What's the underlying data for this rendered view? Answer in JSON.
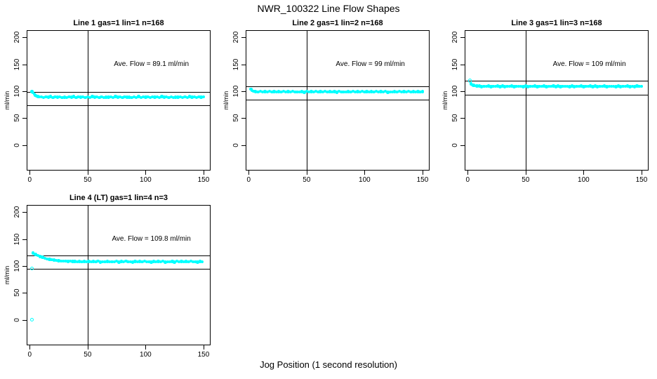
{
  "figure": {
    "title": "NWR_100322  Line Flow Shapes",
    "xlabel": "Jog Position (1 second resolution)",
    "marker_color": "#00FFFF",
    "line_color": "#000000",
    "background": "#FFFFFF"
  },
  "chart_data": [
    {
      "type": "scatter",
      "title": "Line 1 gas=1 lin=1 n=168",
      "ylabel": "ml/min",
      "annotation": "Ave. Flow =  89.1  ml/min",
      "ave_flow_ml_min": 89.1,
      "hlines": [
        99.1,
        74.1
      ],
      "vline": 50,
      "xlim": [
        -2.6,
        156.1
      ],
      "ylim": [
        -47.5,
        213.5
      ],
      "xticks": [
        0,
        50,
        100,
        150
      ],
      "yticks": [
        0,
        50,
        100,
        150,
        200
      ],
      "annotation_center": [
        105,
        150
      ],
      "outliers": [],
      "points": [
        [
          2,
          99.5
        ],
        [
          3,
          97.2
        ],
        [
          4,
          94.6
        ],
        [
          5,
          92.4
        ],
        [
          6,
          91.0
        ],
        [
          7,
          90.2
        ],
        [
          8,
          89.6
        ],
        [
          10,
          89.8
        ],
        [
          12,
          88.4
        ],
        [
          14,
          89.5
        ],
        [
          16,
          88.8
        ],
        [
          18,
          90.0
        ],
        [
          20,
          88.2
        ],
        [
          22,
          89.3
        ],
        [
          24,
          88.9
        ],
        [
          26,
          89.9
        ],
        [
          28,
          88.5
        ],
        [
          30,
          89.1
        ],
        [
          32,
          88.3
        ],
        [
          34,
          89.7
        ],
        [
          36,
          88.7
        ],
        [
          38,
          90.1
        ],
        [
          40,
          88.4
        ],
        [
          42,
          89.4
        ],
        [
          44,
          88.8
        ],
        [
          46,
          89.8
        ],
        [
          48,
          88.2
        ],
        [
          50,
          89.2
        ],
        [
          52,
          88.6
        ],
        [
          54,
          90.0
        ],
        [
          56,
          88.9
        ],
        [
          58,
          89.5
        ],
        [
          60,
          88.3
        ],
        [
          62,
          89.9
        ],
        [
          64,
          88.5
        ],
        [
          66,
          89.0
        ],
        [
          68,
          88.8
        ],
        [
          70,
          89.6
        ],
        [
          72,
          88.2
        ],
        [
          74,
          90.1
        ],
        [
          76,
          88.7
        ],
        [
          78,
          89.3
        ],
        [
          80,
          88.4
        ],
        [
          82,
          89.8
        ],
        [
          84,
          88.9
        ],
        [
          86,
          89.1
        ],
        [
          88,
          88.5
        ],
        [
          90,
          89.7
        ],
        [
          92,
          88.3
        ],
        [
          94,
          90.0
        ],
        [
          96,
          88.6
        ],
        [
          98,
          89.4
        ],
        [
          100,
          88.8
        ],
        [
          102,
          89.9
        ],
        [
          104,
          88.2
        ],
        [
          106,
          89.2
        ],
        [
          108,
          88.7
        ],
        [
          110,
          89.6
        ],
        [
          112,
          88.4
        ],
        [
          114,
          90.1
        ],
        [
          116,
          88.9
        ],
        [
          118,
          89.5
        ],
        [
          120,
          88.3
        ],
        [
          122,
          89.8
        ],
        [
          124,
          88.6
        ],
        [
          126,
          89.0
        ],
        [
          128,
          88.8
        ],
        [
          130,
          89.7
        ],
        [
          132,
          88.2
        ],
        [
          134,
          89.3
        ],
        [
          136,
          88.5
        ],
        [
          138,
          90.0
        ],
        [
          140,
          88.9
        ],
        [
          142,
          89.6
        ],
        [
          144,
          88.4
        ],
        [
          146,
          89.2
        ],
        [
          148,
          88.7
        ],
        [
          150,
          89.9
        ]
      ]
    },
    {
      "type": "scatter",
      "title": "Line 2 gas=1 lin=2 n=168",
      "ylabel": "ml/min",
      "annotation": "Ave. Flow =  99  ml/min",
      "ave_flow_ml_min": 99,
      "hlines": [
        109,
        84
      ],
      "vline": 50,
      "xlim": [
        -2.6,
        156.1
      ],
      "ylim": [
        -47.5,
        213.5
      ],
      "xticks": [
        0,
        50,
        100,
        150
      ],
      "yticks": [
        0,
        50,
        100,
        150,
        200
      ],
      "annotation_center": [
        105,
        150
      ],
      "outliers": [],
      "points": [
        [
          2,
          103.5
        ],
        [
          3,
          101.5
        ],
        [
          4,
          100.3
        ],
        [
          5,
          99.8
        ],
        [
          6,
          99.4
        ],
        [
          8,
          99.0
        ],
        [
          10,
          99.6
        ],
        [
          12,
          98.5
        ],
        [
          14,
          99.3
        ],
        [
          16,
          98.8
        ],
        [
          18,
          99.8
        ],
        [
          20,
          98.4
        ],
        [
          22,
          99.1
        ],
        [
          24,
          98.7
        ],
        [
          26,
          99.5
        ],
        [
          28,
          98.3
        ],
        [
          30,
          99.9
        ],
        [
          32,
          98.6
        ],
        [
          34,
          99.2
        ],
        [
          36,
          98.9
        ],
        [
          38,
          99.7
        ],
        [
          40,
          98.4
        ],
        [
          42,
          99.0
        ],
        [
          44,
          98.8
        ],
        [
          46,
          99.4
        ],
        [
          48,
          98.2
        ],
        [
          50,
          99.8
        ],
        [
          52,
          98.6
        ],
        [
          54,
          99.3
        ],
        [
          56,
          98.9
        ],
        [
          58,
          99.6
        ],
        [
          60,
          98.3
        ],
        [
          62,
          99.1
        ],
        [
          64,
          98.7
        ],
        [
          66,
          99.9
        ],
        [
          68,
          98.5
        ],
        [
          70,
          99.2
        ],
        [
          72,
          98.8
        ],
        [
          74,
          99.5
        ],
        [
          76,
          98.2
        ],
        [
          78,
          99.7
        ],
        [
          80,
          98.6
        ],
        [
          82,
          99.0
        ],
        [
          84,
          98.9
        ],
        [
          86,
          99.4
        ],
        [
          88,
          98.3
        ],
        [
          90,
          99.8
        ],
        [
          92,
          98.5
        ],
        [
          94,
          99.2
        ],
        [
          96,
          98.7
        ],
        [
          98,
          99.6
        ],
        [
          100,
          98.4
        ],
        [
          102,
          99.1
        ],
        [
          104,
          98.8
        ],
        [
          106,
          99.5
        ],
        [
          108,
          98.3
        ],
        [
          110,
          99.9
        ],
        [
          112,
          98.6
        ],
        [
          114,
          99.3
        ],
        [
          116,
          98.9
        ],
        [
          118,
          99.7
        ],
        [
          120,
          98.2
        ],
        [
          122,
          99.0
        ],
        [
          124,
          98.7
        ],
        [
          126,
          99.4
        ],
        [
          128,
          98.5
        ],
        [
          130,
          99.8
        ],
        [
          132,
          98.3
        ],
        [
          134,
          99.2
        ],
        [
          136,
          98.8
        ],
        [
          138,
          99.6
        ],
        [
          140,
          98.4
        ],
        [
          142,
          99.1
        ],
        [
          144,
          98.6
        ],
        [
          146,
          99.5
        ],
        [
          148,
          98.9
        ],
        [
          150,
          99.3
        ]
      ]
    },
    {
      "type": "scatter",
      "title": "Line 3 gas=1 lin=3 n=168",
      "ylabel": "ml/min",
      "annotation": "Ave. Flow =  109  ml/min",
      "ave_flow_ml_min": 109,
      "hlines": [
        119,
        94
      ],
      "vline": 50,
      "xlim": [
        -2.6,
        156.1
      ],
      "ylim": [
        -47.5,
        213.5
      ],
      "xticks": [
        0,
        50,
        100,
        150
      ],
      "yticks": [
        0,
        50,
        100,
        150,
        200
      ],
      "annotation_center": [
        105,
        150
      ],
      "outliers": [
        [
          2,
          119.5
        ]
      ],
      "points": [
        [
          3,
          113.5
        ],
        [
          4,
          111.8
        ],
        [
          5,
          110.8
        ],
        [
          6,
          110.2
        ],
        [
          8,
          109.6
        ],
        [
          10,
          109.6
        ],
        [
          12,
          108.5
        ],
        [
          14,
          109.3
        ],
        [
          16,
          108.8
        ],
        [
          18,
          109.8
        ],
        [
          20,
          108.4
        ],
        [
          22,
          109.1
        ],
        [
          24,
          108.7
        ],
        [
          26,
          109.5
        ],
        [
          28,
          108.3
        ],
        [
          30,
          109.9
        ],
        [
          32,
          108.6
        ],
        [
          34,
          109.2
        ],
        [
          36,
          108.9
        ],
        [
          38,
          109.7
        ],
        [
          40,
          108.4
        ],
        [
          42,
          109.0
        ],
        [
          44,
          108.8
        ],
        [
          46,
          109.4
        ],
        [
          48,
          108.2
        ],
        [
          50,
          109.8
        ],
        [
          52,
          108.6
        ],
        [
          54,
          109.3
        ],
        [
          56,
          108.9
        ],
        [
          58,
          109.6
        ],
        [
          60,
          108.3
        ],
        [
          62,
          109.1
        ],
        [
          64,
          108.7
        ],
        [
          66,
          109.9
        ],
        [
          68,
          108.5
        ],
        [
          70,
          109.2
        ],
        [
          72,
          108.8
        ],
        [
          74,
          109.5
        ],
        [
          76,
          108.2
        ],
        [
          78,
          109.7
        ],
        [
          80,
          108.6
        ],
        [
          82,
          109.0
        ],
        [
          84,
          108.9
        ],
        [
          86,
          109.4
        ],
        [
          88,
          108.3
        ],
        [
          90,
          109.8
        ],
        [
          92,
          108.5
        ],
        [
          94,
          109.2
        ],
        [
          96,
          108.7
        ],
        [
          98,
          109.6
        ],
        [
          100,
          108.4
        ],
        [
          102,
          109.1
        ],
        [
          104,
          108.8
        ],
        [
          106,
          109.5
        ],
        [
          108,
          108.3
        ],
        [
          110,
          109.9
        ],
        [
          112,
          108.6
        ],
        [
          114,
          109.3
        ],
        [
          116,
          108.9
        ],
        [
          118,
          109.7
        ],
        [
          120,
          108.2
        ],
        [
          122,
          109.0
        ],
        [
          124,
          108.7
        ],
        [
          126,
          109.4
        ],
        [
          128,
          108.5
        ],
        [
          130,
          109.8
        ],
        [
          132,
          108.3
        ],
        [
          134,
          109.2
        ],
        [
          136,
          108.8
        ],
        [
          138,
          109.6
        ],
        [
          140,
          108.4
        ],
        [
          142,
          109.1
        ],
        [
          144,
          108.6
        ],
        [
          146,
          109.5
        ],
        [
          148,
          108.9
        ],
        [
          150,
          109.3
        ]
      ]
    },
    {
      "type": "scatter",
      "title": "Line 4 (LT) gas=1 lin=4 n=3",
      "ylabel": "ml/min",
      "annotation": "Ave. Flow =  109.8  ml/min",
      "ave_flow_ml_min": 109.8,
      "hlines": [
        119.8,
        94.8
      ],
      "vline": 50,
      "xlim": [
        -2.6,
        156.1
      ],
      "ylim": [
        -47.5,
        213.5
      ],
      "xticks": [
        0,
        50,
        100,
        150
      ],
      "yticks": [
        0,
        50,
        100,
        150,
        200
      ],
      "annotation_center": [
        105,
        150
      ],
      "outliers": [
        [
          2,
          0
        ],
        [
          2,
          95.5
        ]
      ],
      "points": [
        [
          3,
          124.0
        ],
        [
          5,
          121.6
        ],
        [
          7,
          119.5
        ],
        [
          9,
          117.6
        ],
        [
          11,
          116.1
        ],
        [
          13,
          114.6
        ],
        [
          15,
          113.4
        ],
        [
          17,
          112.4
        ],
        [
          19,
          111.5
        ],
        [
          21,
          110.8
        ],
        [
          23,
          110.1
        ],
        [
          25,
          109.7
        ],
        [
          27,
          109.2
        ],
        [
          29,
          108.9
        ],
        [
          31,
          108.7
        ],
        [
          33,
          108.5
        ],
        [
          35,
          108.9
        ],
        [
          37,
          108.2
        ],
        [
          39,
          108.6
        ],
        [
          41,
          108.0
        ],
        [
          43,
          108.4
        ],
        [
          45,
          107.8
        ],
        [
          47,
          108.3
        ],
        [
          49,
          107.9
        ],
        [
          51,
          108.5
        ],
        [
          53,
          107.7
        ],
        [
          55,
          108.4
        ],
        [
          57,
          107.6
        ],
        [
          59,
          108.8
        ],
        [
          61,
          107.3
        ],
        [
          63,
          108.1
        ],
        [
          65,
          107.9
        ],
        [
          67,
          108.6
        ],
        [
          69,
          107.4
        ],
        [
          71,
          108.0
        ],
        [
          73,
          107.8
        ],
        [
          75,
          108.7
        ],
        [
          77,
          107.2
        ],
        [
          79,
          108.3
        ],
        [
          81,
          107.7
        ],
        [
          83,
          108.9
        ],
        [
          85,
          107.5
        ],
        [
          87,
          108.1
        ],
        [
          89,
          107.3
        ],
        [
          91,
          108.5
        ],
        [
          93,
          107.9
        ],
        [
          95,
          108.2
        ],
        [
          97,
          107.4
        ],
        [
          99,
          108.8
        ],
        [
          101,
          107.6
        ],
        [
          103,
          108.0
        ],
        [
          105,
          107.2
        ],
        [
          107,
          108.6
        ],
        [
          109,
          107.8
        ],
        [
          111,
          108.3
        ],
        [
          113,
          107.5
        ],
        [
          115,
          108.9
        ],
        [
          117,
          107.3
        ],
        [
          119,
          108.1
        ],
        [
          121,
          107.7
        ],
        [
          123,
          108.4
        ],
        [
          125,
          107.2
        ],
        [
          127,
          108.7
        ],
        [
          129,
          107.9
        ],
        [
          131,
          108.2
        ],
        [
          133,
          107.6
        ],
        [
          135,
          108.5
        ],
        [
          137,
          107.4
        ],
        [
          139,
          108.8
        ],
        [
          141,
          107.8
        ],
        [
          143,
          108.0
        ],
        [
          145,
          107.3
        ],
        [
          147,
          108.6
        ],
        [
          149,
          107.5
        ]
      ]
    }
  ]
}
